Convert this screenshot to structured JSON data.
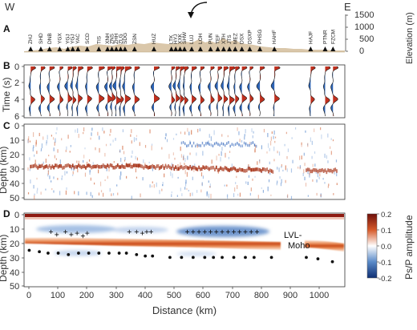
{
  "figure": {
    "compass_west": "W",
    "compass_east": "E",
    "panel_labels": [
      "A",
      "B",
      "C",
      "D"
    ],
    "colors": {
      "red": "#c0301e",
      "blue": "#2c63b5",
      "topo": "#cdb48e",
      "lvl_blue": "#8fb0dd",
      "moho_orange": "#d0531d",
      "surface_red": "#8e1b12"
    }
  },
  "panel_a": {
    "ylabel": "Elevation (m)",
    "yticks": [
      "0",
      "500",
      "1000",
      "1500"
    ],
    "stations": [
      {
        "label": "ZHJ",
        "x": 20
      },
      {
        "label": "SHD",
        "x": 55
      },
      {
        "label": "DNB",
        "x": 85
      },
      {
        "label": "YGX",
        "x": 120
      },
      {
        "label": "YGJ",
        "x": 148
      },
      {
        "label": "YGJ",
        "x": 165
      },
      {
        "label": "YAC",
        "x": 183
      },
      {
        "label": "SCD",
        "x": 215
      },
      {
        "label": "TIS",
        "x": 255
      },
      {
        "label": "XNH",
        "x": 285
      },
      {
        "label": "ZNS",
        "x": 300
      },
      {
        "label": "ZHH",
        "x": 315
      },
      {
        "label": "ZLG",
        "x": 330
      },
      {
        "label": "SDG",
        "x": 345
      },
      {
        "label": "ZSN",
        "x": 378
      },
      {
        "label": "HUZ",
        "x": 445
      },
      {
        "label": "LTK",
        "x": 505
      },
      {
        "label": "HYJ",
        "x": 520
      },
      {
        "label": "XXK",
        "x": 535
      },
      {
        "label": "SHW",
        "x": 550
      },
      {
        "label": "LUJ",
        "x": 575
      },
      {
        "label": "LOH",
        "x": 605
      },
      {
        "label": "PUN",
        "x": 640
      },
      {
        "label": "TEF",
        "x": 665
      },
      {
        "label": "XTH",
        "x": 685
      },
      {
        "label": "JTS",
        "x": 705
      },
      {
        "label": "MEZ",
        "x": 725
      },
      {
        "label": "DSX",
        "x": 748
      },
      {
        "label": "DSXP",
        "x": 775
      },
      {
        "label": "PHSG",
        "x": 810
      },
      {
        "label": "HAHF",
        "x": 860
      },
      {
        "label": "HAJF",
        "x": 985
      },
      {
        "label": "PTNR",
        "x": 1035
      },
      {
        "label": "FZCM",
        "x": 1062
      }
    ]
  },
  "panel_b": {
    "ylabel": "Time (s)",
    "ylim": [
      0,
      6
    ],
    "yticks": [
      "0",
      "2",
      "4",
      "6"
    ]
  },
  "panel_c": {
    "ylabel": "Depth (km)",
    "ylim": [
      0,
      50
    ],
    "yticks": [
      "0",
      "10",
      "20",
      "30",
      "40",
      "50"
    ]
  },
  "panel_d": {
    "ylabel": "Depth (km)",
    "xlabel": "Distance (km)",
    "xlim": [
      0,
      1100
    ],
    "ylim": [
      0,
      50
    ],
    "xticks": [
      "0",
      "100",
      "200",
      "300",
      "400",
      "500",
      "600",
      "700",
      "800",
      "900",
      "1000"
    ],
    "yticks": [
      "0",
      "10",
      "20",
      "30",
      "40",
      "50"
    ],
    "annotations": {
      "lvl": "LVL-",
      "moho": "Moho"
    },
    "colorbar": {
      "label": "Ps/P amplitude",
      "ticks": [
        "0.2",
        "0.1",
        "0.0",
        "-0.1",
        "-0.2"
      ]
    },
    "lvl_picks": [
      [
        90,
        12
      ],
      [
        110,
        14
      ],
      [
        140,
        12
      ],
      [
        160,
        14
      ],
      [
        180,
        13
      ],
      [
        200,
        15
      ],
      [
        215,
        13
      ],
      [
        360,
        12
      ],
      [
        385,
        12
      ],
      [
        405,
        13
      ],
      [
        420,
        12
      ],
      [
        435,
        12
      ],
      [
        560,
        12
      ],
      [
        580,
        12
      ],
      [
        600,
        12
      ],
      [
        620,
        12
      ],
      [
        640,
        12
      ],
      [
        660,
        12
      ],
      [
        680,
        12
      ],
      [
        700,
        12
      ],
      [
        720,
        12
      ],
      [
        740,
        12
      ],
      [
        760,
        12
      ],
      [
        780,
        12
      ],
      [
        800,
        12
      ]
    ],
    "moho_picks": [
      [
        15,
        25
      ],
      [
        50,
        26
      ],
      [
        80,
        27
      ],
      [
        115,
        27
      ],
      [
        150,
        28
      ],
      [
        185,
        27
      ],
      [
        220,
        27
      ],
      [
        255,
        27
      ],
      [
        290,
        27
      ],
      [
        325,
        27
      ],
      [
        350,
        27
      ],
      [
        385,
        28
      ],
      [
        415,
        29
      ],
      [
        440,
        29
      ],
      [
        500,
        30
      ],
      [
        540,
        30
      ],
      [
        580,
        30
      ],
      [
        620,
        30
      ],
      [
        650,
        30
      ],
      [
        680,
        30
      ],
      [
        720,
        30
      ],
      [
        760,
        30
      ],
      [
        790,
        30
      ],
      [
        850,
        30
      ],
      [
        970,
        30
      ],
      [
        1010,
        31
      ],
      [
        1060,
        33
      ]
    ]
  }
}
